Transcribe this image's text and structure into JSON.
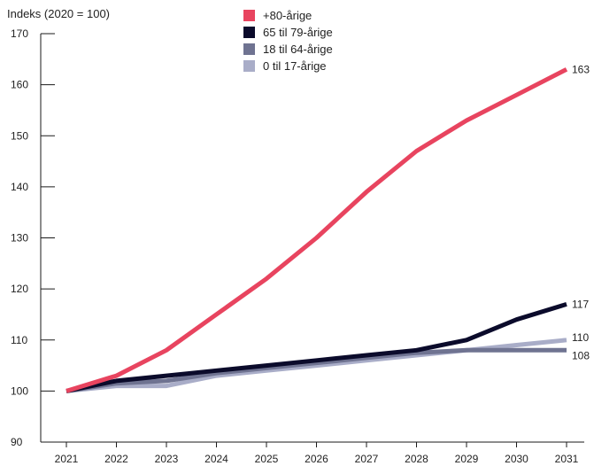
{
  "chart_data": {
    "type": "line",
    "ylabel": "Indeks (2020 = 100)",
    "x": [
      "2021",
      "2022",
      "2023",
      "2024",
      "2025",
      "2026",
      "2027",
      "2028",
      "2029",
      "2030",
      "2031"
    ],
    "ylim": [
      90,
      170
    ],
    "yticks": [
      "90",
      "100",
      "110",
      "120",
      "130",
      "140",
      "150",
      "160",
      "170"
    ],
    "grid": false,
    "legend_position": "top-center",
    "series": [
      {
        "name": "+80-årige",
        "color": "#e8445f",
        "values": [
          100,
          103,
          108,
          115,
          122,
          130,
          139,
          147,
          153,
          158,
          163
        ],
        "end_label": "163"
      },
      {
        "name": "65 til 79-årige",
        "color": "#0b0b2b",
        "values": [
          100,
          102,
          103,
          104,
          105,
          106,
          107,
          108,
          110,
          114,
          117
        ],
        "end_label": "117"
      },
      {
        "name": "18 til 64-årige",
        "color": "#6f7391",
        "values": [
          100,
          101.5,
          102,
          103.5,
          104.5,
          105.5,
          106.5,
          107.5,
          108,
          108,
          108
        ],
        "end_label": "108"
      },
      {
        "name": "0 til 17-årige",
        "color": "#a9adc8",
        "values": [
          100,
          101,
          101,
          103,
          104,
          105,
          106,
          107,
          108,
          109,
          110
        ],
        "end_label": "110"
      }
    ]
  }
}
